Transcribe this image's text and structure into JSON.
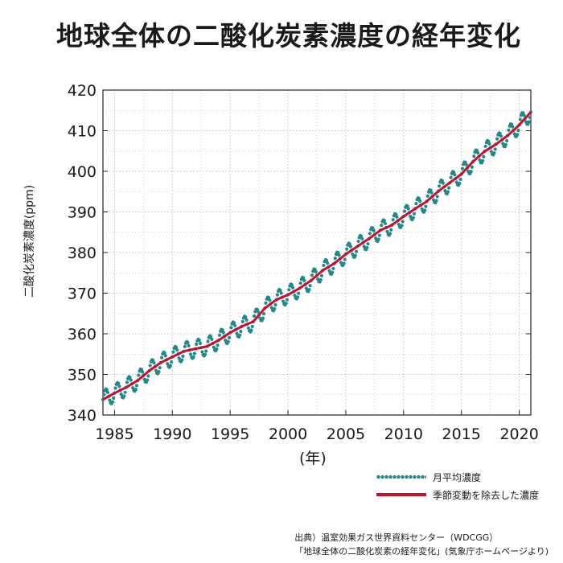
{
  "title": "地球全体の二酸化炭素濃度の経年変化",
  "legend": {
    "monthly": "月平均濃度",
    "deseasonalized": "季節変動を除去した濃度"
  },
  "source": {
    "line1": "出典）温室効果ガス世界資料センター（WDCGG）",
    "line2": "「地球全体の二酸化炭素の経年変化」(気象庁ホームページより)"
  },
  "colors": {
    "monthly": "#1f8a88",
    "deseasonalized": "#c8102e",
    "grid": "#b0b0b0"
  },
  "chart_data": {
    "type": "line",
    "xlabel": "(年)",
    "ylabel": "二酸化炭素濃度(ppm)",
    "xlim": [
      1984,
      2021
    ],
    "ylim": [
      340,
      420
    ],
    "xticks": [
      "1985",
      "1990",
      "1995",
      "2000",
      "2005",
      "2010",
      "2015",
      "2020"
    ],
    "yticks": [
      "340",
      "350",
      "360",
      "370",
      "380",
      "390",
      "400",
      "410",
      "420"
    ],
    "grid": true,
    "legend_position": "bottom-right",
    "series": [
      {
        "name": "季節変動を除去した濃度",
        "x": [
          1984,
          1985,
          1986,
          1987,
          1988,
          1989,
          1990,
          1991,
          1992,
          1993,
          1994,
          1995,
          1996,
          1997,
          1998,
          1999,
          2000,
          2001,
          2002,
          2003,
          2004,
          2005,
          2006,
          2007,
          2008,
          2009,
          2010,
          2011,
          2012,
          2013,
          2014,
          2015,
          2016,
          2017,
          2018,
          2019,
          2020,
          2021
        ],
        "values": [
          343.8,
          345.4,
          346.8,
          348.5,
          350.9,
          352.9,
          354.3,
          355.7,
          356.3,
          356.9,
          358.4,
          360.3,
          361.8,
          363.0,
          366.3,
          368.4,
          369.6,
          371.2,
          373.1,
          375.6,
          377.3,
          379.6,
          381.5,
          383.4,
          385.5,
          386.8,
          388.9,
          390.8,
          392.6,
          395.1,
          397.2,
          399.3,
          402.4,
          404.9,
          406.7,
          408.8,
          411.4,
          414.6
        ]
      },
      {
        "name": "月平均濃度",
        "seasonal_amplitude": 2.2,
        "x_range": [
          1984,
          2021
        ]
      }
    ]
  }
}
